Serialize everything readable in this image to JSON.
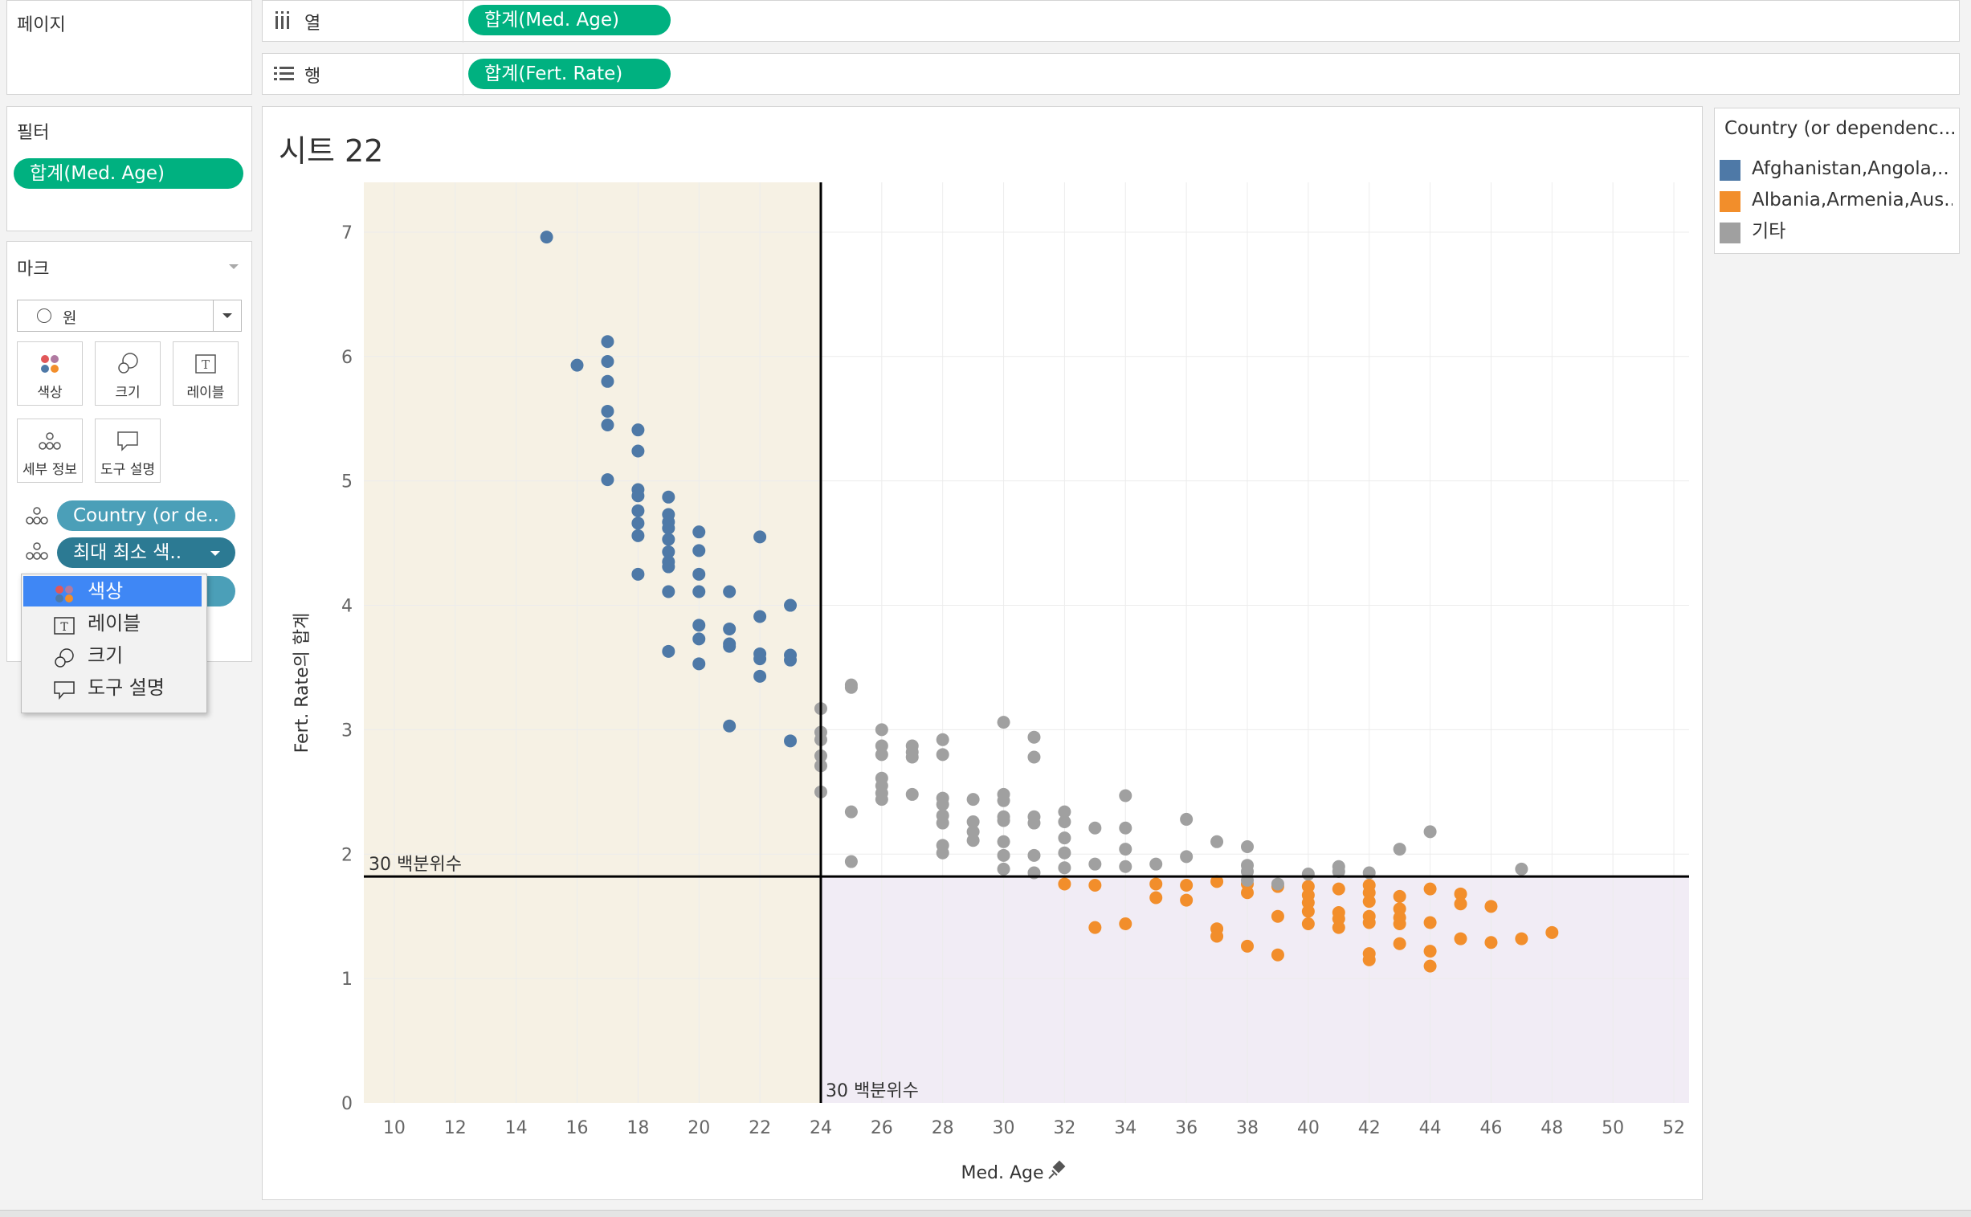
{
  "pages_shelf": {
    "title": "페이지"
  },
  "columns_shelf": {
    "label": "열",
    "pill": "합계(Med. Age)"
  },
  "rows_shelf": {
    "label": "행",
    "pill": "합계(Fert. Rate)"
  },
  "filters": {
    "title": "필터",
    "pill": "합계(Med. Age)"
  },
  "marks": {
    "title": "마크",
    "mark_type": "원",
    "buttons": {
      "color": "색상",
      "size": "크기",
      "label": "레이블",
      "detail": "세부 정보",
      "tooltip": "도구 설명"
    },
    "fields": [
      "Country (or de..",
      "최대 최소 색.."
    ]
  },
  "context_menu": {
    "items": [
      {
        "label": "색상",
        "icon": "color-dots-icon",
        "selected": true
      },
      {
        "label": "레이블",
        "icon": "label-t-icon"
      },
      {
        "label": "크기",
        "icon": "size-icon"
      },
      {
        "label": "도구 설명",
        "icon": "tooltip-icon"
      }
    ]
  },
  "sheet": {
    "title": "시트 22"
  },
  "legend": {
    "title": "Country (or dependenc...",
    "items": [
      {
        "label": "Afghanistan,Angola,..",
        "color": "#4e79a7"
      },
      {
        "label": "Albania,Armenia,Aus..",
        "color": "#f28e2b"
      },
      {
        "label": "기타",
        "color": "#a0a0a0"
      }
    ]
  },
  "colors": {
    "accent_green": "#00b180",
    "shade_young": "#f6f1e4",
    "shade_old": "#f1ecf5"
  },
  "chart_data": {
    "type": "scatter",
    "title": "시트 22",
    "xlabel": "Med. Age",
    "ylabel": "Fert. Rate의 합계",
    "xlim": [
      9,
      52.5
    ],
    "ylim": [
      0,
      7.4
    ],
    "xticks": [
      10,
      12,
      14,
      16,
      18,
      20,
      22,
      24,
      26,
      28,
      30,
      32,
      34,
      36,
      38,
      40,
      42,
      44,
      46,
      48,
      50,
      52
    ],
    "yticks": [
      0,
      1,
      2,
      3,
      4,
      5,
      6,
      7
    ],
    "reference_lines": [
      {
        "axis": "x",
        "value": 24,
        "label": "30 백분위수"
      },
      {
        "axis": "y",
        "value": 1.82,
        "label": "30 백분위수"
      }
    ],
    "series": [
      {
        "name": "Afghanistan,Angola,..",
        "color": "#4e79a7",
        "points": [
          [
            15,
            6.96
          ],
          [
            16,
            5.93
          ],
          [
            17,
            6.12
          ],
          [
            17,
            5.96
          ],
          [
            17,
            5.8
          ],
          [
            17,
            5.56
          ],
          [
            17,
            5.45
          ],
          [
            17,
            5.01
          ],
          [
            18,
            5.41
          ],
          [
            18,
            5.24
          ],
          [
            18,
            4.93
          ],
          [
            18,
            4.88
          ],
          [
            18,
            4.76
          ],
          [
            18,
            4.66
          ],
          [
            18,
            4.56
          ],
          [
            18,
            4.25
          ],
          [
            19,
            4.87
          ],
          [
            19,
            4.73
          ],
          [
            19,
            4.67
          ],
          [
            19,
            4.62
          ],
          [
            19,
            4.53
          ],
          [
            19,
            4.43
          ],
          [
            19,
            4.35
          ],
          [
            19,
            4.31
          ],
          [
            19,
            4.11
          ],
          [
            19,
            3.63
          ],
          [
            20,
            4.59
          ],
          [
            20,
            4.44
          ],
          [
            20,
            4.25
          ],
          [
            20,
            4.11
          ],
          [
            20,
            3.84
          ],
          [
            20,
            3.73
          ],
          [
            20,
            3.53
          ],
          [
            21,
            4.11
          ],
          [
            21,
            3.81
          ],
          [
            21,
            3.69
          ],
          [
            21,
            3.67
          ],
          [
            21,
            3.03
          ],
          [
            22,
            4.55
          ],
          [
            22,
            3.91
          ],
          [
            22,
            3.61
          ],
          [
            22,
            3.57
          ],
          [
            22,
            3.43
          ],
          [
            23,
            4.0
          ],
          [
            23,
            3.6
          ],
          [
            23,
            3.56
          ],
          [
            23,
            2.91
          ]
        ]
      },
      {
        "name": "Albania,Armenia,Aus..",
        "color": "#f28e2b",
        "points": [
          [
            32,
            1.76
          ],
          [
            33,
            1.75
          ],
          [
            33,
            1.41
          ],
          [
            34,
            1.44
          ],
          [
            35,
            1.76
          ],
          [
            35,
            1.65
          ],
          [
            36,
            1.75
          ],
          [
            36,
            1.63
          ],
          [
            37,
            1.78
          ],
          [
            37,
            1.4
          ],
          [
            37,
            1.34
          ],
          [
            38,
            1.76
          ],
          [
            38,
            1.69
          ],
          [
            38,
            1.26
          ],
          [
            39,
            1.74
          ],
          [
            39,
            1.5
          ],
          [
            39,
            1.19
          ],
          [
            40,
            1.74
          ],
          [
            40,
            1.67
          ],
          [
            40,
            1.61
          ],
          [
            40,
            1.54
          ],
          [
            40,
            1.44
          ],
          [
            41,
            1.53
          ],
          [
            41,
            1.48
          ],
          [
            41,
            1.41
          ],
          [
            41,
            1.72
          ],
          [
            42,
            1.75
          ],
          [
            42,
            1.69
          ],
          [
            42,
            1.62
          ],
          [
            42,
            1.5
          ],
          [
            42,
            1.45
          ],
          [
            42,
            1.2
          ],
          [
            42,
            1.15
          ],
          [
            43,
            1.66
          ],
          [
            43,
            1.56
          ],
          [
            43,
            1.49
          ],
          [
            43,
            1.44
          ],
          [
            43,
            1.28
          ],
          [
            44,
            1.72
          ],
          [
            44,
            1.45
          ],
          [
            44,
            1.22
          ],
          [
            44,
            1.1
          ],
          [
            45,
            1.68
          ],
          [
            45,
            1.6
          ],
          [
            45,
            1.32
          ],
          [
            46,
            1.58
          ],
          [
            46,
            1.29
          ],
          [
            47,
            1.32
          ],
          [
            48,
            1.37
          ]
        ]
      },
      {
        "name": "",
        "color": "#a0a0a0",
        "points": [
          [
            24,
            3.17
          ],
          [
            24,
            2.98
          ],
          [
            24,
            2.92
          ],
          [
            24,
            2.79
          ],
          [
            24,
            2.71
          ],
          [
            24,
            2.5
          ],
          [
            25,
            3.36
          ],
          [
            25,
            3.34
          ],
          [
            25,
            2.34
          ],
          [
            25,
            1.94
          ],
          [
            26,
            3.0
          ],
          [
            26,
            2.87
          ],
          [
            26,
            2.8
          ],
          [
            26,
            2.61
          ],
          [
            26,
            2.55
          ],
          [
            26,
            2.49
          ],
          [
            26,
            2.44
          ],
          [
            27,
            2.87
          ],
          [
            27,
            2.82
          ],
          [
            27,
            2.78
          ],
          [
            27,
            2.48
          ],
          [
            28,
            2.92
          ],
          [
            28,
            2.8
          ],
          [
            28,
            2.45
          ],
          [
            28,
            2.4
          ],
          [
            28,
            2.31
          ],
          [
            28,
            2.25
          ],
          [
            28,
            2.07
          ],
          [
            28,
            2.01
          ],
          [
            29,
            2.44
          ],
          [
            29,
            2.26
          ],
          [
            29,
            2.18
          ],
          [
            29,
            2.11
          ],
          [
            30,
            3.06
          ],
          [
            30,
            2.48
          ],
          [
            30,
            2.43
          ],
          [
            30,
            2.3
          ],
          [
            30,
            2.27
          ],
          [
            30,
            2.1
          ],
          [
            30,
            1.99
          ],
          [
            30,
            1.88
          ],
          [
            31,
            2.94
          ],
          [
            31,
            2.78
          ],
          [
            31,
            2.3
          ],
          [
            31,
            2.25
          ],
          [
            31,
            1.99
          ],
          [
            31,
            1.85
          ],
          [
            32,
            2.34
          ],
          [
            32,
            2.26
          ],
          [
            32,
            2.13
          ],
          [
            32,
            2.01
          ],
          [
            32,
            1.89
          ],
          [
            33,
            2.21
          ],
          [
            33,
            1.92
          ],
          [
            34,
            2.47
          ],
          [
            34,
            2.21
          ],
          [
            34,
            2.04
          ],
          [
            34,
            1.9
          ],
          [
            35,
            1.92
          ],
          [
            36,
            2.28
          ],
          [
            36,
            1.98
          ],
          [
            37,
            2.1
          ],
          [
            38,
            2.06
          ],
          [
            38,
            1.91
          ],
          [
            38,
            1.86
          ],
          [
            38,
            1.79
          ],
          [
            39,
            1.76
          ],
          [
            40,
            1.84
          ],
          [
            41,
            1.9
          ],
          [
            41,
            1.86
          ],
          [
            42,
            1.85
          ],
          [
            43,
            2.04
          ],
          [
            44,
            2.18
          ],
          [
            47,
            1.88
          ]
        ]
      }
    ]
  }
}
